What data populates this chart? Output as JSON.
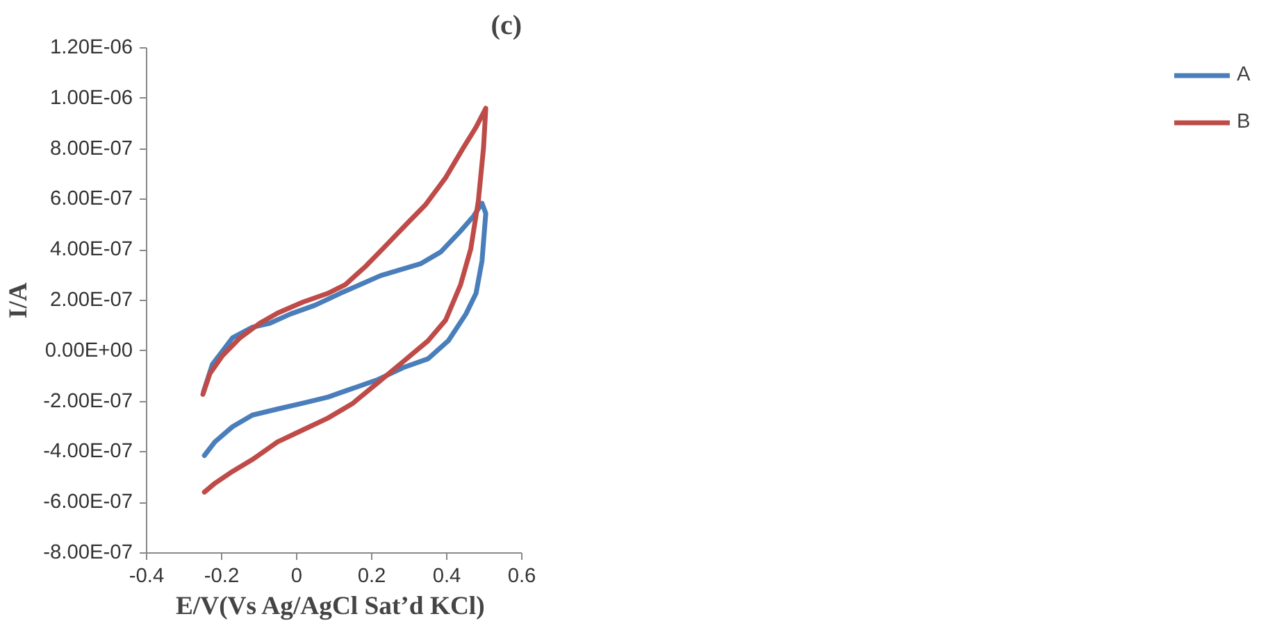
{
  "chart_data": {
    "type": "line",
    "title": "(c)",
    "xlabel": "E/V(Vs  Ag/AgCl Sat’d KCl)",
    "ylabel": "I/A",
    "xlim": [
      -0.4,
      0.6
    ],
    "xticks": [
      {
        "value": -0.4,
        "label": "-0.4"
      },
      {
        "value": -0.2,
        "label": "-0.2"
      },
      0,
      {
        "value": 0.2,
        "label": "0.2"
      },
      {
        "value": 0.4,
        "label": "0.4"
      },
      {
        "value": 0.6,
        "label": "0.6"
      }
    ],
    "ylim": [
      -8e-07,
      1.2e-06
    ],
    "yticks": [
      {
        "value": -8e-07,
        "label": "-8.00E-07"
      },
      {
        "value": -6e-07,
        "label": "-6.00E-07"
      },
      {
        "value": -4e-07,
        "label": "-4.00E-07"
      },
      {
        "value": -2e-07,
        "label": "-2.00E-07"
      },
      {
        "value": 0,
        "label": "0.00E+00"
      },
      {
        "value": 2e-07,
        "label": "2.00E-07"
      },
      {
        "value": 4e-07,
        "label": "4.00E-07"
      },
      {
        "value": 6e-07,
        "label": "6.00E-07"
      },
      {
        "value": 8e-07,
        "label": "8.00E-07"
      },
      {
        "value": 1e-06,
        "label": "1.00E-06"
      },
      {
        "value": 1.2e-06,
        "label": "1.20E-06"
      }
    ],
    "grid": false,
    "legend": "right",
    "marker": "none",
    "line_style": "solid",
    "series": [
      {
        "name": "A",
        "color": "#4a7ebb",
        "x": [
          -0.248,
          -0.225,
          -0.171,
          -0.118,
          -0.071,
          -0.017,
          0.049,
          0.116,
          0.17,
          0.223,
          0.277,
          0.33,
          0.384,
          0.437,
          0.471,
          0.494,
          0.504,
          0.494,
          0.478,
          0.451,
          0.404,
          0.35,
          0.284,
          0.217,
          0.15,
          0.083,
          0.016,
          -0.051,
          -0.118,
          -0.171,
          -0.218,
          -0.246
        ],
        "values": [
          -1.6e-07,
          -5.4e-08,
          5.2e-08,
          9.4e-08,
          1.1e-07,
          1.46e-07,
          1.81e-07,
          2.28e-07,
          2.63e-07,
          2.98e-07,
          3.22e-07,
          3.45e-07,
          3.92e-07,
          4.75e-07,
          5.33e-07,
          5.85e-07,
          5.45e-07,
          3.57e-07,
          2.28e-07,
          1.46e-07,
          4e-08,
          -3.1e-08,
          -6.6e-08,
          -1.13e-07,
          -1.48e-07,
          -1.83e-07,
          -2.07e-07,
          -2.3e-07,
          -2.54e-07,
          -3e-07,
          -3.6e-07,
          -4.14e-07
        ]
      },
      {
        "name": "B",
        "color": "#be4b48",
        "x": [
          -0.25,
          -0.231,
          -0.198,
          -0.151,
          -0.098,
          -0.051,
          0.016,
          0.083,
          0.13,
          0.183,
          0.237,
          0.29,
          0.344,
          0.397,
          0.444,
          0.478,
          0.504,
          0.498,
          0.484,
          0.464,
          0.437,
          0.397,
          0.35,
          0.284,
          0.217,
          0.15,
          0.083,
          0.016,
          -0.051,
          -0.118,
          -0.171,
          -0.218,
          -0.246
        ],
        "values": [
          -1.72e-07,
          -8.9e-08,
          -1.9e-08,
          5.2e-08,
          1.1e-07,
          1.5e-07,
          1.93e-07,
          2.28e-07,
          2.63e-07,
          3.34e-07,
          4.16e-07,
          4.98e-07,
          5.8e-07,
          6.86e-07,
          8.04e-07,
          8.86e-07,
          9.61e-07,
          8.04e-07,
          5.92e-07,
          4.04e-07,
          2.63e-07,
          1.22e-07,
          4e-08,
          -4.2e-08,
          -1.25e-07,
          -2.07e-07,
          -2.66e-07,
          -3.13e-07,
          -3.6e-07,
          -4.3e-07,
          -4.77e-07,
          -5.24e-07,
          -5.59e-07
        ]
      }
    ]
  }
}
